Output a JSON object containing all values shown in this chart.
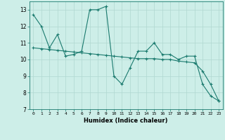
{
  "xlabel": "Humidex (Indice chaleur)",
  "xlim": [
    -0.5,
    23.5
  ],
  "ylim": [
    7,
    13.5
  ],
  "yticks": [
    7,
    8,
    9,
    10,
    11,
    12,
    13
  ],
  "xticks": [
    0,
    1,
    2,
    3,
    4,
    5,
    6,
    7,
    8,
    9,
    10,
    11,
    12,
    13,
    14,
    15,
    16,
    17,
    18,
    19,
    20,
    21,
    22,
    23
  ],
  "bg_color": "#cdeee8",
  "line_color": "#1a7a6e",
  "grid_color": "#b0d8d0",
  "line1_x": [
    0,
    1,
    2,
    3,
    4,
    5,
    6,
    7,
    8,
    9,
    10,
    11,
    12,
    13,
    14,
    15,
    16,
    17,
    18,
    19,
    20,
    21,
    22,
    23
  ],
  "line1_y": [
    12.7,
    12.0,
    10.7,
    11.5,
    10.2,
    10.3,
    10.5,
    13.0,
    13.0,
    13.2,
    9.0,
    8.5,
    9.5,
    10.5,
    10.5,
    11.0,
    10.3,
    10.3,
    10.0,
    10.2,
    10.2,
    8.5,
    7.8,
    7.5
  ],
  "line2_x": [
    0,
    1,
    2,
    3,
    4,
    5,
    6,
    7,
    8,
    9,
    10,
    11,
    12,
    13,
    14,
    15,
    16,
    17,
    18,
    19,
    20,
    21,
    22,
    23
  ],
  "line2_y": [
    10.7,
    10.65,
    10.6,
    10.55,
    10.5,
    10.45,
    10.4,
    10.35,
    10.3,
    10.25,
    10.2,
    10.15,
    10.1,
    10.05,
    10.05,
    10.05,
    10.0,
    10.0,
    9.9,
    9.85,
    9.8,
    9.3,
    8.5,
    7.5
  ]
}
